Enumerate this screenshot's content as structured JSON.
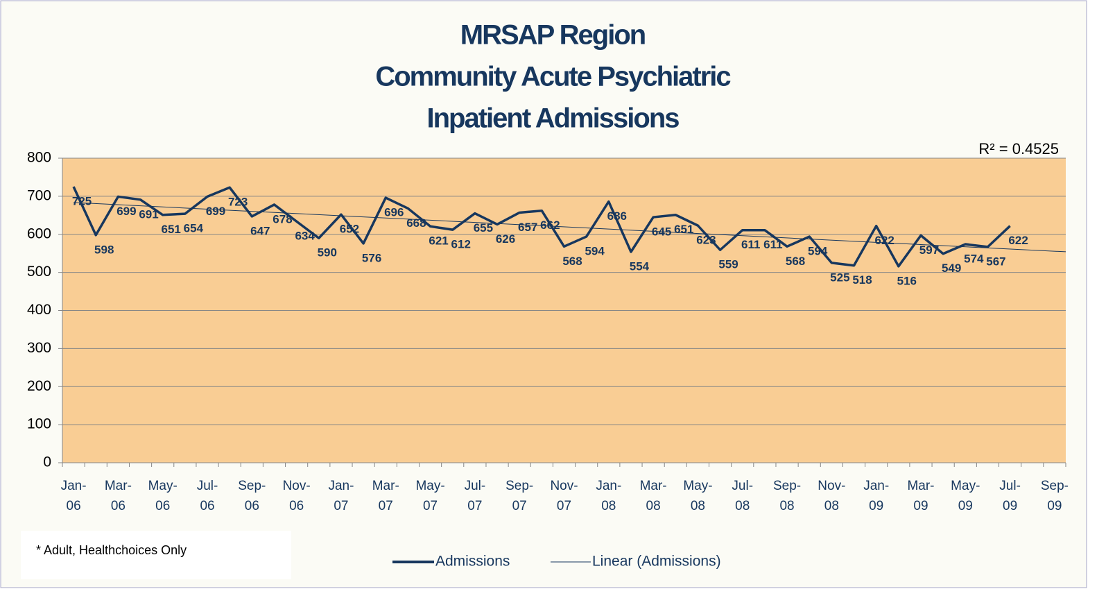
{
  "chart_data": {
    "type": "line",
    "title_lines": [
      "MRSAP Region",
      "Community Acute Psychiatric",
      "Inpatient Admissions"
    ],
    "categories": [
      "Jan-06",
      null,
      "Mar-06",
      null,
      "May-06",
      null,
      "Jul-06",
      null,
      "Sep-06",
      null,
      "Nov-06",
      null,
      "Jan-07",
      null,
      "Mar-07",
      null,
      "May-07",
      null,
      "Jul-07",
      null,
      "Sep-07",
      null,
      "Nov-07",
      null,
      "Jan-08",
      null,
      "Mar-08",
      null,
      "May-08",
      null,
      "Jul-08",
      null,
      "Sep-08",
      null,
      "Nov-08",
      null,
      "Jan-09",
      null,
      "Mar-09",
      null,
      "May-09",
      null,
      "Jul-09",
      null,
      "Sep-09"
    ],
    "series": [
      {
        "name": "Admissions",
        "color": "#17375e",
        "values": [
          725,
          598,
          699,
          691,
          651,
          654,
          699,
          723,
          647,
          678,
          634,
          590,
          652,
          576,
          696,
          668,
          621,
          612,
          655,
          626,
          657,
          662,
          568,
          594,
          686,
          554,
          645,
          651,
          623,
          559,
          611,
          611,
          568,
          594,
          525,
          518,
          622,
          516,
          597,
          549,
          574,
          567,
          622,
          null,
          null
        ]
      }
    ],
    "trendline": {
      "name": "Linear (Admissions)",
      "color": "#17375e",
      "r_squared_label": "R² = 0.4525"
    },
    "ylim": [
      0,
      800
    ],
    "yticks": [
      0,
      100,
      200,
      300,
      400,
      500,
      600,
      700,
      800
    ],
    "grid": true,
    "plot_background": "#f9cd94",
    "footnote": "* Adult, Healthchoices Only"
  }
}
